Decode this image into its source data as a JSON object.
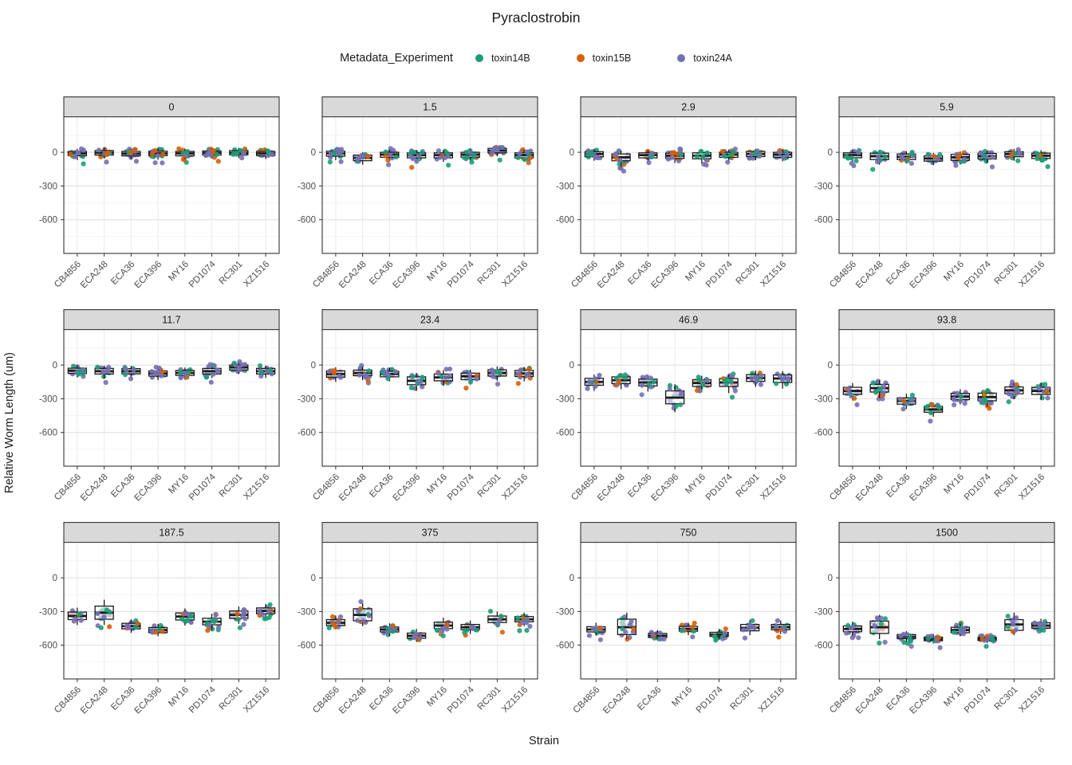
{
  "title": "Pyraclostrobin",
  "legend": {
    "title": "Metadata_Experiment",
    "entries": [
      {
        "label": "toxin14B",
        "color": "#1B9E77"
      },
      {
        "label": "toxin15B",
        "color": "#D95F02"
      },
      {
        "label": "toxin24A",
        "color": "#7570B3"
      }
    ]
  },
  "chart_data": {
    "type": "boxplot",
    "title": "Pyraclostrobin",
    "xlabel": "Strain",
    "ylabel": "Relative Worm Length (um)",
    "legend_title": "Metadata_Experiment",
    "legend_position": "top",
    "grid": true,
    "yticks": [
      0,
      -300,
      -600
    ],
    "yticks_minor": [
      150,
      -150,
      -450,
      -750
    ],
    "ylim": [
      320,
      -900
    ],
    "strains": [
      "CB4856",
      "ECA248",
      "ECA36",
      "ECA396",
      "MY16",
      "PD1074",
      "RC301",
      "XZ1516"
    ],
    "stats_format": [
      "median",
      "q1",
      "q3",
      "whisker_low",
      "whisker_high"
    ],
    "facets": [
      {
        "label": "0",
        "stats": [
          [
            -10,
            -30,
            8,
            -70,
            30
          ],
          [
            -5,
            -25,
            15,
            -55,
            40
          ],
          [
            -12,
            -32,
            8,
            -60,
            30
          ],
          [
            -10,
            -30,
            10,
            -65,
            35
          ],
          [
            -10,
            -32,
            8,
            -60,
            30
          ],
          [
            -5,
            -25,
            12,
            -55,
            35
          ],
          [
            -5,
            -22,
            15,
            -50,
            40
          ],
          [
            -10,
            -30,
            8,
            -60,
            30
          ]
        ]
      },
      {
        "label": "1.5",
        "stats": [
          [
            -10,
            -35,
            10,
            -70,
            35
          ],
          [
            -50,
            -75,
            -25,
            -110,
            0
          ],
          [
            -20,
            -45,
            0,
            -80,
            25
          ],
          [
            -25,
            -50,
            -5,
            -90,
            20
          ],
          [
            -25,
            -50,
            -5,
            -85,
            20
          ],
          [
            -20,
            -45,
            0,
            -80,
            25
          ],
          [
            15,
            -5,
            35,
            -35,
            60
          ],
          [
            -25,
            -50,
            -5,
            -85,
            20
          ]
        ]
      },
      {
        "label": "2.9",
        "stats": [
          [
            -15,
            -40,
            5,
            -75,
            30
          ],
          [
            -45,
            -75,
            -15,
            -130,
            15
          ],
          [
            -25,
            -50,
            -5,
            -85,
            20
          ],
          [
            -30,
            -55,
            -8,
            -95,
            18
          ],
          [
            -30,
            -58,
            -5,
            -100,
            20
          ],
          [
            -20,
            -45,
            0,
            -80,
            25
          ],
          [
            -15,
            -38,
            8,
            -70,
            30
          ],
          [
            -20,
            -45,
            0,
            -80,
            25
          ]
        ]
      },
      {
        "label": "5.9",
        "stats": [
          [
            -25,
            -48,
            -5,
            -85,
            20
          ],
          [
            -35,
            -65,
            -8,
            -110,
            20
          ],
          [
            -40,
            -65,
            -15,
            -100,
            10
          ],
          [
            -55,
            -78,
            -32,
            -115,
            -5
          ],
          [
            -45,
            -72,
            -18,
            -110,
            8
          ],
          [
            -35,
            -60,
            -10,
            -95,
            15
          ],
          [
            -15,
            -40,
            5,
            -75,
            30
          ],
          [
            -30,
            -55,
            -8,
            -90,
            18
          ]
        ]
      },
      {
        "label": "11.7",
        "stats": [
          [
            -50,
            -75,
            -28,
            -110,
            0
          ],
          [
            -55,
            -80,
            -30,
            -120,
            -5
          ],
          [
            -55,
            -78,
            -32,
            -115,
            -8
          ],
          [
            -75,
            -98,
            -52,
            -135,
            -25
          ],
          [
            -70,
            -92,
            -48,
            -130,
            -22
          ],
          [
            -55,
            -80,
            -30,
            -115,
            -5
          ],
          [
            -20,
            -45,
            0,
            -80,
            25
          ],
          [
            -55,
            -80,
            -30,
            -115,
            -5
          ]
        ]
      },
      {
        "label": "23.4",
        "stats": [
          [
            -80,
            -108,
            -52,
            -150,
            -20
          ],
          [
            -70,
            -95,
            -45,
            -135,
            -15
          ],
          [
            -80,
            -105,
            -55,
            -145,
            -25
          ],
          [
            -140,
            -175,
            -105,
            -230,
            -70
          ],
          [
            -110,
            -140,
            -80,
            -185,
            -45
          ],
          [
            -100,
            -130,
            -72,
            -175,
            -40
          ],
          [
            -70,
            -98,
            -42,
            -140,
            -12
          ],
          [
            -75,
            -102,
            -48,
            -145,
            -18
          ]
        ]
      },
      {
        "label": "46.9",
        "stats": [
          [
            -150,
            -180,
            -118,
            -230,
            -85
          ],
          [
            -135,
            -165,
            -105,
            -215,
            -70
          ],
          [
            -155,
            -185,
            -125,
            -235,
            -90
          ],
          [
            -290,
            -345,
            -230,
            -420,
            -170
          ],
          [
            -160,
            -190,
            -130,
            -240,
            -95
          ],
          [
            -155,
            -190,
            -120,
            -250,
            -85
          ],
          [
            -115,
            -145,
            -85,
            -195,
            -50
          ],
          [
            -120,
            -155,
            -88,
            -210,
            -55
          ]
        ]
      },
      {
        "label": "93.8",
        "stats": [
          [
            -230,
            -262,
            -198,
            -315,
            -160
          ],
          [
            -205,
            -240,
            -172,
            -295,
            -135
          ],
          [
            -320,
            -348,
            -292,
            -390,
            -255
          ],
          [
            -395,
            -420,
            -368,
            -460,
            -335
          ],
          [
            -280,
            -308,
            -252,
            -350,
            -215
          ],
          [
            -285,
            -318,
            -250,
            -370,
            -210
          ],
          [
            -225,
            -255,
            -195,
            -305,
            -158
          ],
          [
            -230,
            -262,
            -198,
            -310,
            -160
          ]
        ]
      },
      {
        "label": "187.5",
        "stats": [
          [
            -340,
            -372,
            -305,
            -420,
            -265
          ],
          [
            -310,
            -368,
            -252,
            -420,
            -195
          ],
          [
            -430,
            -455,
            -405,
            -490,
            -370
          ],
          [
            -465,
            -488,
            -442,
            -520,
            -410
          ],
          [
            -345,
            -375,
            -312,
            -425,
            -272
          ],
          [
            -390,
            -418,
            -360,
            -465,
            -320
          ],
          [
            -330,
            -362,
            -295,
            -410,
            -255
          ],
          [
            -295,
            -320,
            -268,
            -360,
            -232
          ]
        ]
      },
      {
        "label": "375",
        "stats": [
          [
            -400,
            -425,
            -372,
            -460,
            -335
          ],
          [
            -330,
            -382,
            -275,
            -430,
            -225
          ],
          [
            -460,
            -482,
            -438,
            -515,
            -405
          ],
          [
            -515,
            -538,
            -492,
            -570,
            -455
          ],
          [
            -425,
            -452,
            -395,
            -490,
            -355
          ],
          [
            -440,
            -462,
            -415,
            -500,
            -380
          ],
          [
            -370,
            -398,
            -340,
            -440,
            -300
          ],
          [
            -370,
            -392,
            -345,
            -430,
            -310
          ]
        ]
      },
      {
        "label": "750",
        "strains": [
          "CB4856",
          "ECA248",
          "ECA36",
          "MY16",
          "PD1074",
          "RC301",
          "XZ1516"
        ],
        "stats": [
          [
            -460,
            -482,
            -435,
            -515,
            -400
          ],
          [
            -440,
            -505,
            -368,
            -545,
            -310
          ],
          [
            -515,
            -532,
            -495,
            -560,
            -465
          ],
          [
            -455,
            -475,
            -432,
            -510,
            -400
          ],
          [
            -505,
            -522,
            -485,
            -550,
            -455
          ],
          [
            -445,
            -472,
            -415,
            -510,
            -375
          ],
          [
            -440,
            -462,
            -415,
            -500,
            -380
          ]
        ]
      },
      {
        "label": "1500",
        "stats": [
          [
            -455,
            -480,
            -428,
            -520,
            -390
          ],
          [
            -440,
            -495,
            -385,
            -545,
            -330
          ],
          [
            -525,
            -542,
            -505,
            -570,
            -475
          ],
          [
            -545,
            -560,
            -528,
            -585,
            -500
          ],
          [
            -465,
            -488,
            -440,
            -520,
            -405
          ],
          [
            -545,
            -558,
            -530,
            -580,
            -505
          ],
          [
            -415,
            -468,
            -372,
            -510,
            -310
          ],
          [
            -425,
            -448,
            -400,
            -480,
            -365
          ]
        ]
      }
    ]
  }
}
